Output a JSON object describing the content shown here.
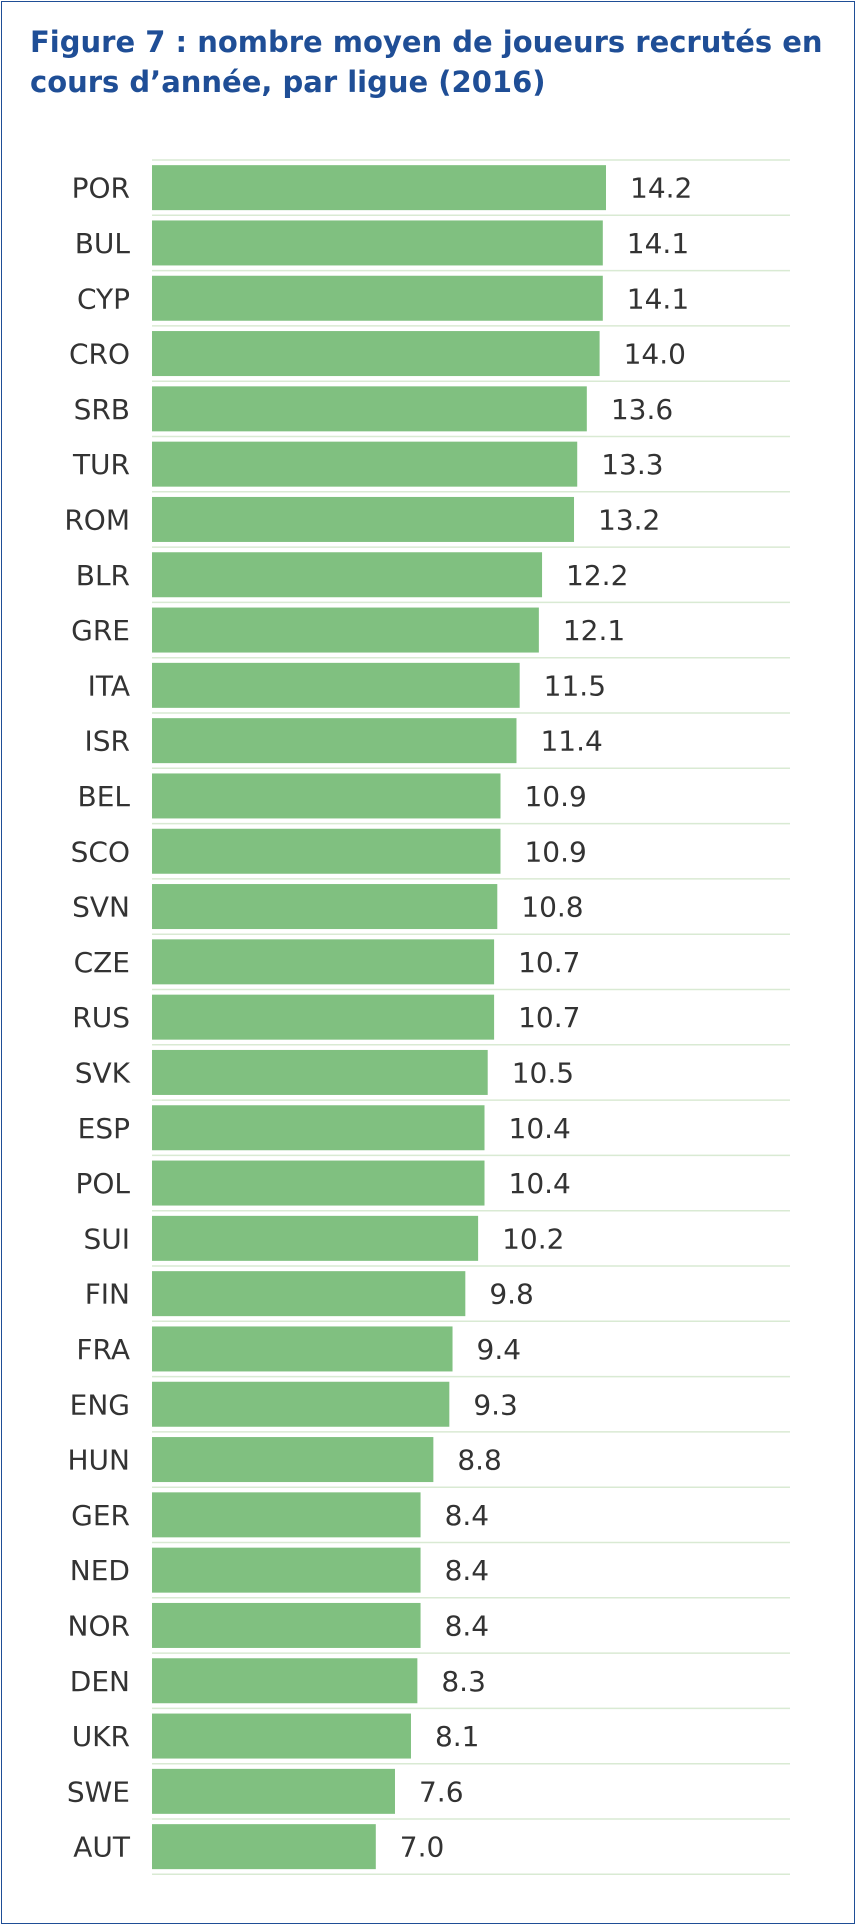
{
  "title": "Figure 7 : nombre moyen de joueurs recrutés en cours d’année, par ligue (2016)",
  "chart_data": {
    "type": "bar",
    "orientation": "horizontal",
    "categories": [
      "POR",
      "BUL",
      "CYP",
      "CRO",
      "SRB",
      "TUR",
      "ROM",
      "BLR",
      "GRE",
      "ITA",
      "ISR",
      "BEL",
      "SCO",
      "SVN",
      "CZE",
      "RUS",
      "SVK",
      "ESP",
      "POL",
      "SUI",
      "FIN",
      "FRA",
      "ENG",
      "HUN",
      "GER",
      "NED",
      "NOR",
      "DEN",
      "UKR",
      "SWE",
      "AUT"
    ],
    "values": [
      14.2,
      14.1,
      14.1,
      14.0,
      13.6,
      13.3,
      13.2,
      12.2,
      12.1,
      11.5,
      11.4,
      10.9,
      10.9,
      10.8,
      10.7,
      10.7,
      10.5,
      10.4,
      10.4,
      10.2,
      9.8,
      9.4,
      9.3,
      8.8,
      8.4,
      8.4,
      8.4,
      8.3,
      8.1,
      7.6,
      7.0
    ],
    "value_labels": [
      "14.2",
      "14.1",
      "14.1",
      "14.0",
      "13.6",
      "13.3",
      "13.2",
      "12.2",
      "12.1",
      "11.5",
      "11.4",
      "10.9",
      "10.9",
      "10.8",
      "10.7",
      "10.7",
      "10.5",
      "10.4",
      "10.4",
      "10.2",
      "9.8",
      "9.4",
      "9.3",
      "8.8",
      "8.4",
      "8.4",
      "8.4",
      "8.3",
      "8.1",
      "7.6",
      "7.0"
    ],
    "xlim": [
      0,
      20
    ],
    "grid": true,
    "legend": "none",
    "bar_color": "#80c080",
    "grid_color": "#d9ead3",
    "title_color": "#1f4e96"
  }
}
